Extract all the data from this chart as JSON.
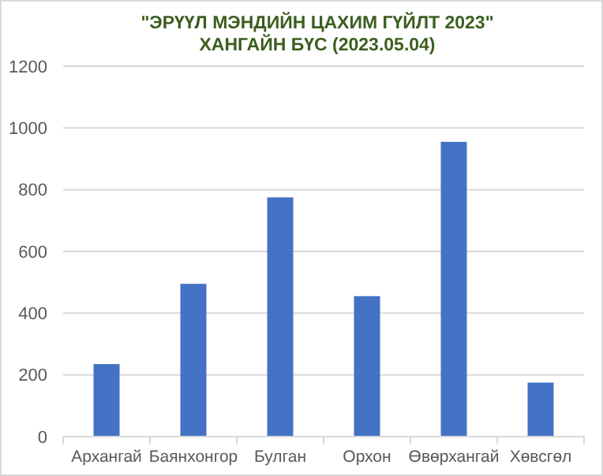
{
  "chart_data": {
    "type": "bar",
    "title": "\"ЭРҮҮЛ МЭНДИЙН ЦАХИМ ГҮЙЛТ 2023\"\nХАНГАЙН БҮС (2023.05.04)",
    "categories": [
      "Архангай",
      "Баянхонгор",
      "Булган",
      "Орхон",
      "Өвөрхангай",
      "Хөвсгөл"
    ],
    "values": [
      235,
      495,
      775,
      455,
      955,
      175
    ],
    "color": "#4472c4",
    "ylim": [
      0,
      1200
    ],
    "yticks": [
      0,
      200,
      400,
      600,
      800,
      1000,
      1200
    ],
    "grid": "y"
  }
}
